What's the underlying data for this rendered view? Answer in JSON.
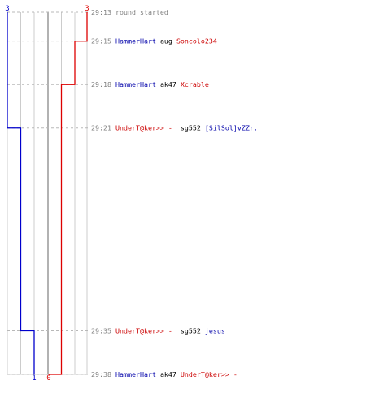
{
  "colors": {
    "team_blue": "#0000cc",
    "team_red": "#dd0000",
    "grid": "#cccccc",
    "divider": "#999999"
  },
  "scores": {
    "blue_start": "3",
    "red_start": "3",
    "blue_end": "1",
    "red_end": "0"
  },
  "chart_data": {
    "type": "line",
    "series": [
      {
        "team": "blue",
        "alive": [
          3,
          3,
          3,
          2,
          1,
          1
        ]
      },
      {
        "team": "red",
        "alive": [
          3,
          2,
          1,
          1,
          1,
          0
        ]
      }
    ],
    "x": [
      "29:13",
      "29:15",
      "29:18",
      "29:21",
      "29:35",
      "29:38"
    ],
    "ylim": [
      0,
      3
    ]
  },
  "events": [
    {
      "time": "29:13",
      "kind": "system",
      "text": "round started"
    },
    {
      "time": "29:15",
      "kind": "kill",
      "killer": "HammerHart",
      "killer_team": "blue",
      "weapon": "aug",
      "victim": "Soncolo234",
      "victim_team": "red"
    },
    {
      "time": "29:18",
      "kind": "kill",
      "killer": "HammerHart",
      "killer_team": "blue",
      "weapon": "ak47",
      "victim": "Xcrable",
      "victim_team": "red"
    },
    {
      "time": "29:21",
      "kind": "kill",
      "killer": "UnderT@ker>>_-_",
      "killer_team": "red",
      "weapon": "sg552",
      "victim": "[SilSol]vZZr.",
      "victim_team": "blue"
    },
    {
      "time": "29:35",
      "kind": "kill",
      "killer": "UnderT@ker>>_-_",
      "killer_team": "red",
      "weapon": "sg552",
      "victim": "jesus",
      "victim_team": "blue"
    },
    {
      "time": "29:38",
      "kind": "kill",
      "killer": "HammerHart",
      "killer_team": "blue",
      "weapon": "ak47",
      "victim": "UnderT@ker>>_-_",
      "victim_team": "red"
    }
  ]
}
